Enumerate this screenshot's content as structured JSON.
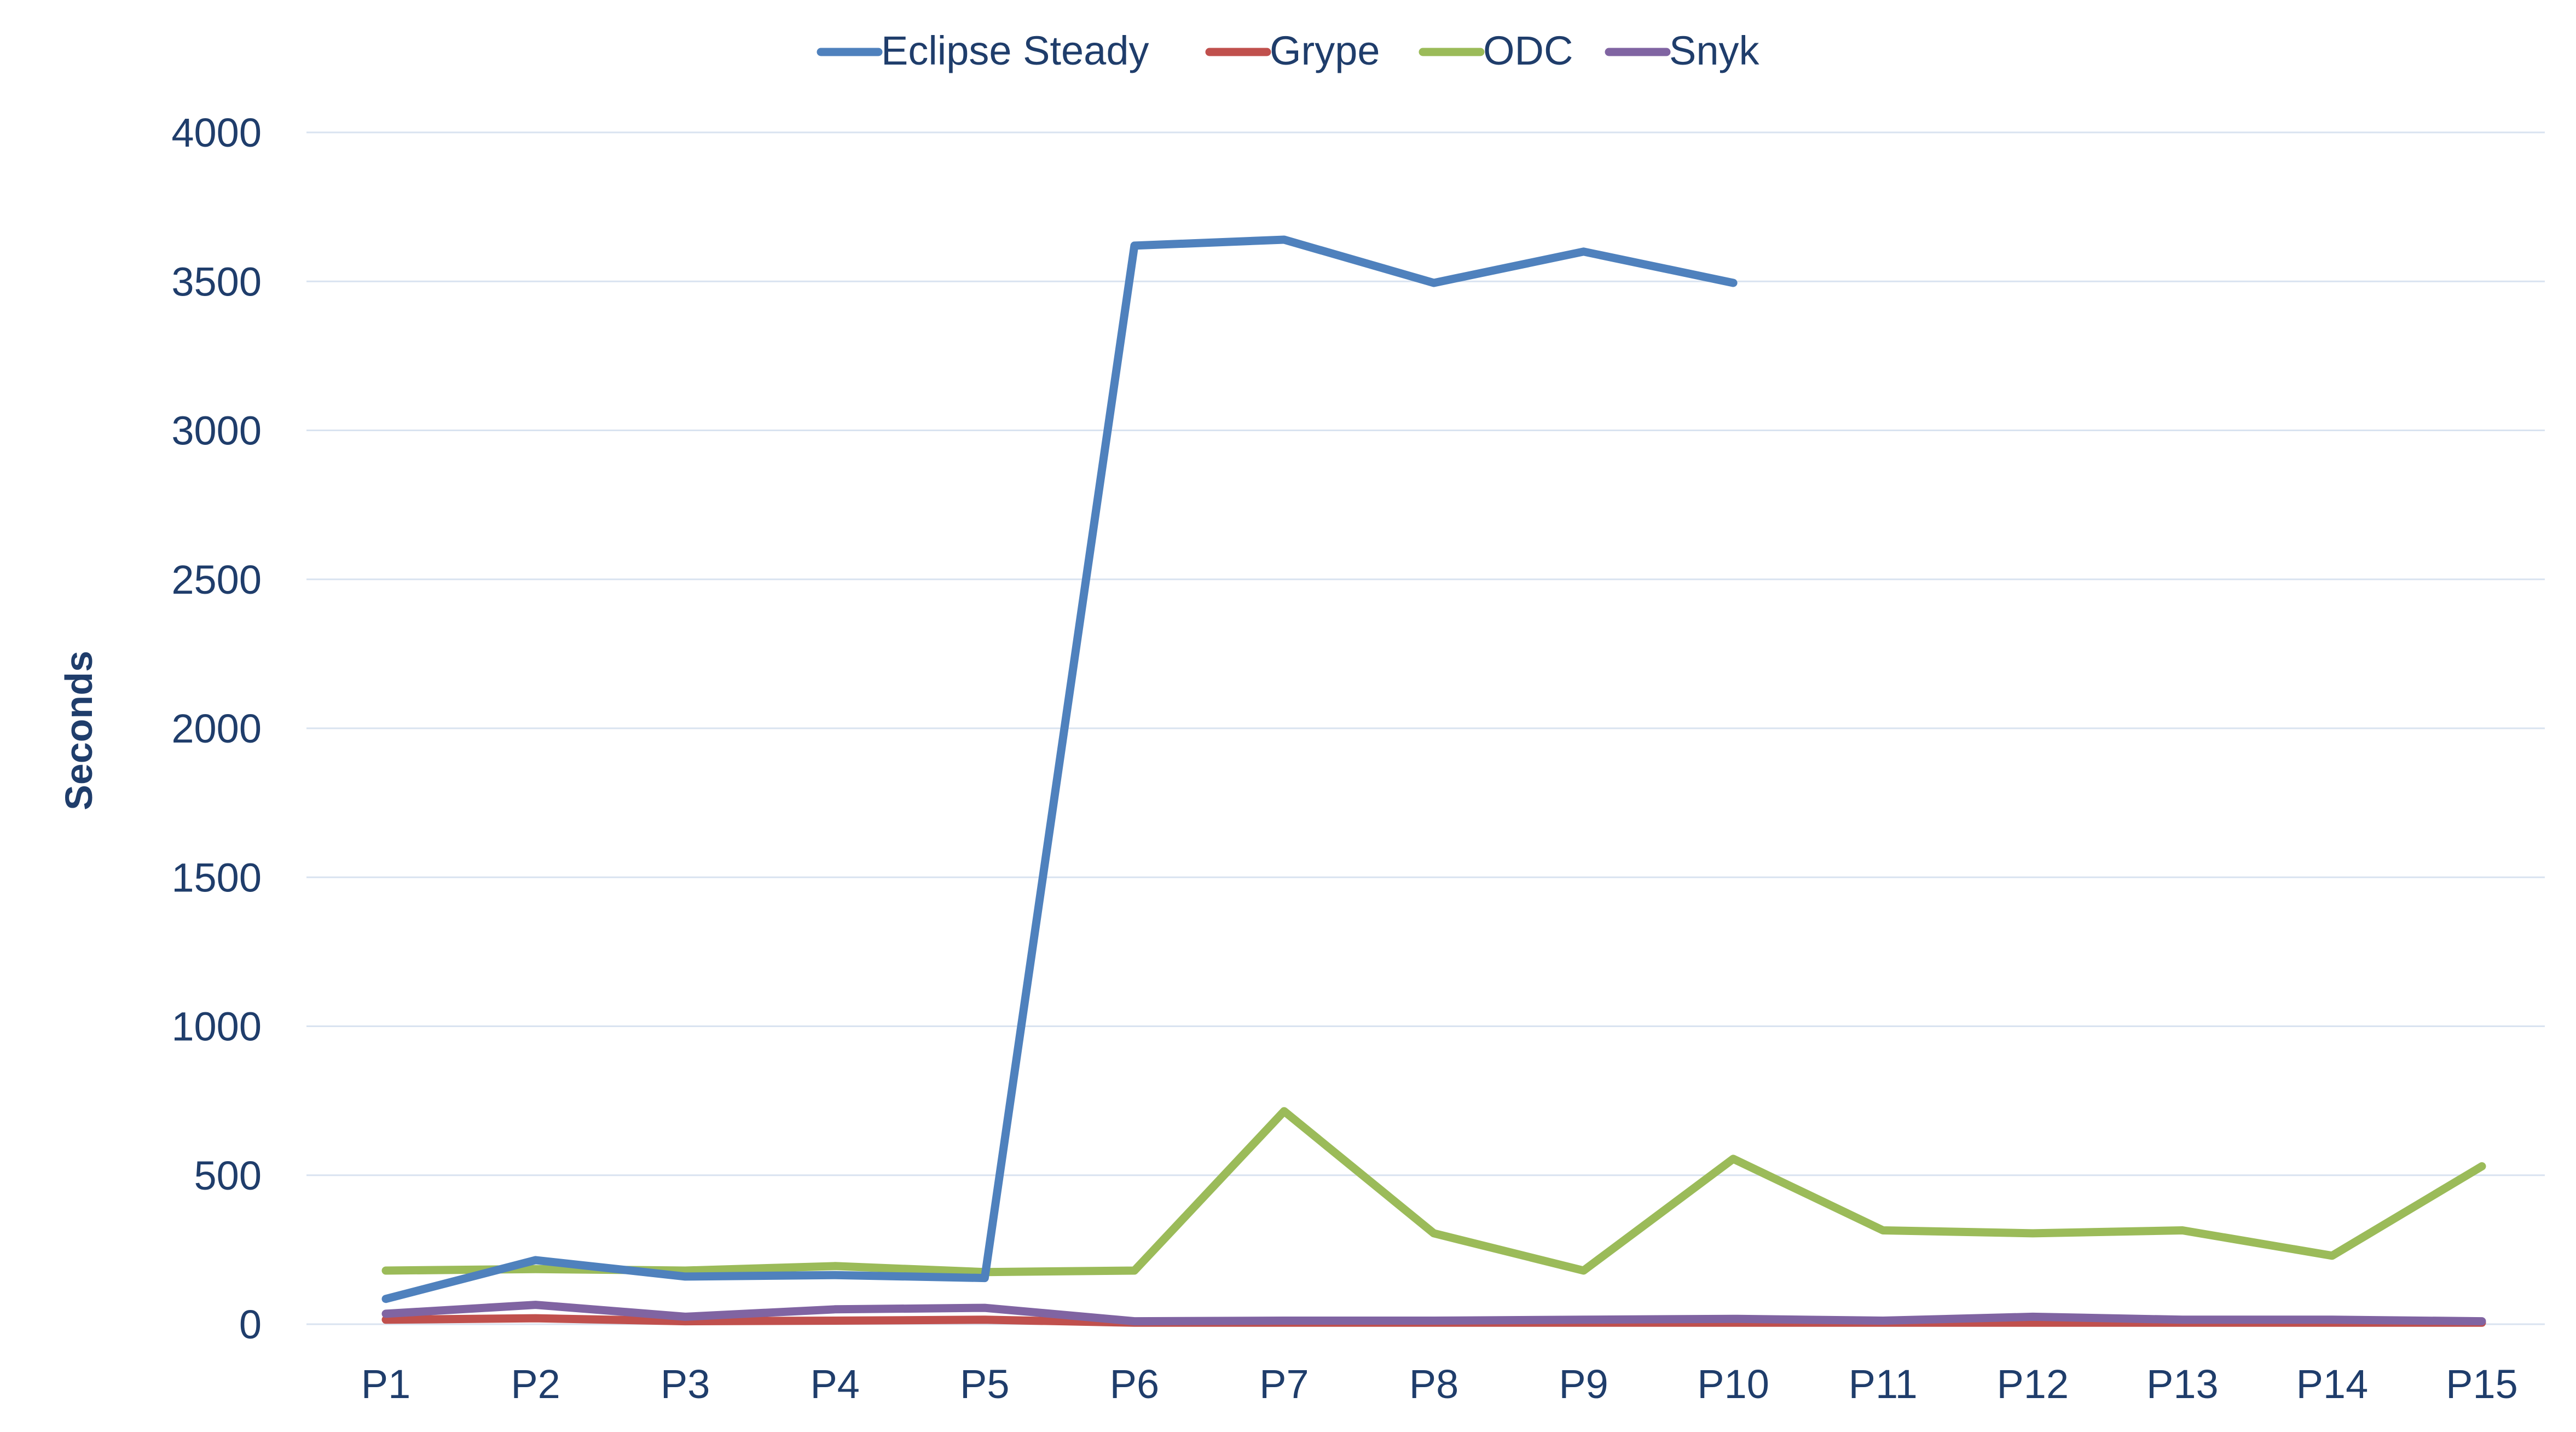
{
  "chart_data": {
    "type": "line",
    "title": "",
    "xlabel": "",
    "ylabel": "Seconds",
    "ylim": [
      0,
      4000
    ],
    "yticks": [
      0,
      500,
      1000,
      1500,
      2000,
      2500,
      3000,
      3500,
      4000
    ],
    "categories": [
      "P1",
      "P2",
      "P3",
      "P4",
      "P5",
      "P6",
      "P7",
      "P8",
      "P9",
      "P10",
      "P11",
      "P12",
      "P13",
      "P14",
      "P15"
    ],
    "grid": true,
    "legend_position": "top",
    "series": [
      {
        "name": "Eclipse Steady",
        "color": "#4f81bd",
        "values": [
          85,
          215,
          160,
          165,
          155,
          3620,
          3640,
          3495,
          3600,
          3495,
          null,
          null,
          null,
          null,
          null
        ]
      },
      {
        "name": "Grype",
        "color": "#c0504d",
        "values": [
          15,
          20,
          10,
          12,
          15,
          5,
          5,
          5,
          5,
          5,
          5,
          5,
          5,
          5,
          5
        ]
      },
      {
        "name": "ODC",
        "color": "#9bbb59",
        "values": [
          180,
          185,
          180,
          195,
          175,
          180,
          715,
          305,
          180,
          555,
          315,
          305,
          315,
          230,
          530
        ]
      },
      {
        "name": "Snyk",
        "color": "#8064a2",
        "values": [
          35,
          65,
          25,
          50,
          55,
          10,
          12,
          12,
          15,
          18,
          12,
          25,
          15,
          15,
          10
        ]
      }
    ]
  }
}
